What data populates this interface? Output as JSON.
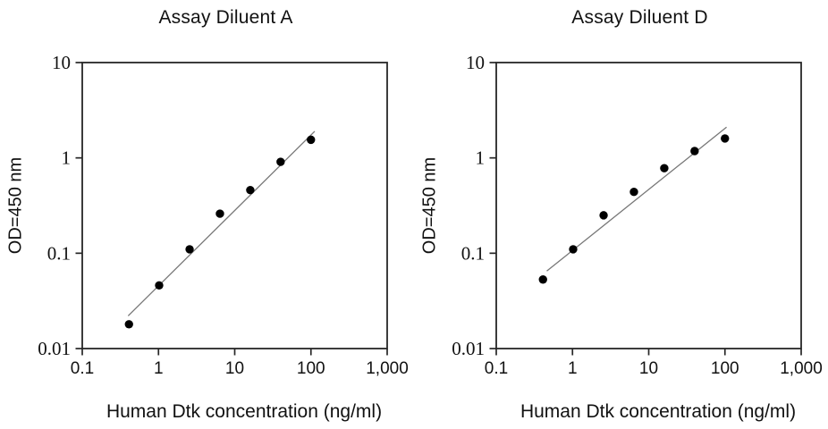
{
  "colors": {
    "background": "#ffffff",
    "marker": "#000000",
    "fit_line": "#777777",
    "axis": "#262626",
    "text": "#111111"
  },
  "chart_data": [
    {
      "type": "scatter",
      "title": "Assay Diluent A",
      "xlabel": "Human Dtk concentration (ng/ml)",
      "ylabel": "OD=450 nm",
      "x_scale": "log",
      "y_scale": "log",
      "xlim": [
        0.1,
        1000
      ],
      "ylim": [
        0.01,
        10
      ],
      "x_tick_labels": [
        "0.1",
        "1",
        "10",
        "100",
        "1,000"
      ],
      "y_tick_labels": [
        "0.01",
        "0.1",
        "1",
        "10"
      ],
      "grid": false,
      "legend": null,
      "x": [
        0.41,
        1.02,
        2.56,
        6.4,
        16,
        40,
        100
      ],
      "y": [
        0.018,
        0.046,
        0.11,
        0.26,
        0.46,
        0.91,
        1.55
      ],
      "fit_line": {
        "x1": 0.4,
        "y1": 0.022,
        "x2": 112,
        "y2": 1.9
      }
    },
    {
      "type": "scatter",
      "title": "Assay Diluent D",
      "xlabel": "Human Dtk concentration (ng/ml)",
      "ylabel": "OD=450 nm",
      "x_scale": "log",
      "y_scale": "log",
      "xlim": [
        0.1,
        1000
      ],
      "ylim": [
        0.01,
        10
      ],
      "x_tick_labels": [
        "0.1",
        "1",
        "10",
        "100",
        "1,000"
      ],
      "y_tick_labels": [
        "0.01",
        "0.1",
        "1",
        "10"
      ],
      "grid": false,
      "legend": null,
      "x": [
        0.41,
        1.02,
        2.56,
        6.4,
        16,
        40,
        100
      ],
      "y": [
        0.053,
        0.11,
        0.25,
        0.44,
        0.78,
        1.18,
        1.6
      ],
      "fit_line": {
        "x1": 0.46,
        "y1": 0.065,
        "x2": 105,
        "y2": 2.1
      }
    }
  ]
}
